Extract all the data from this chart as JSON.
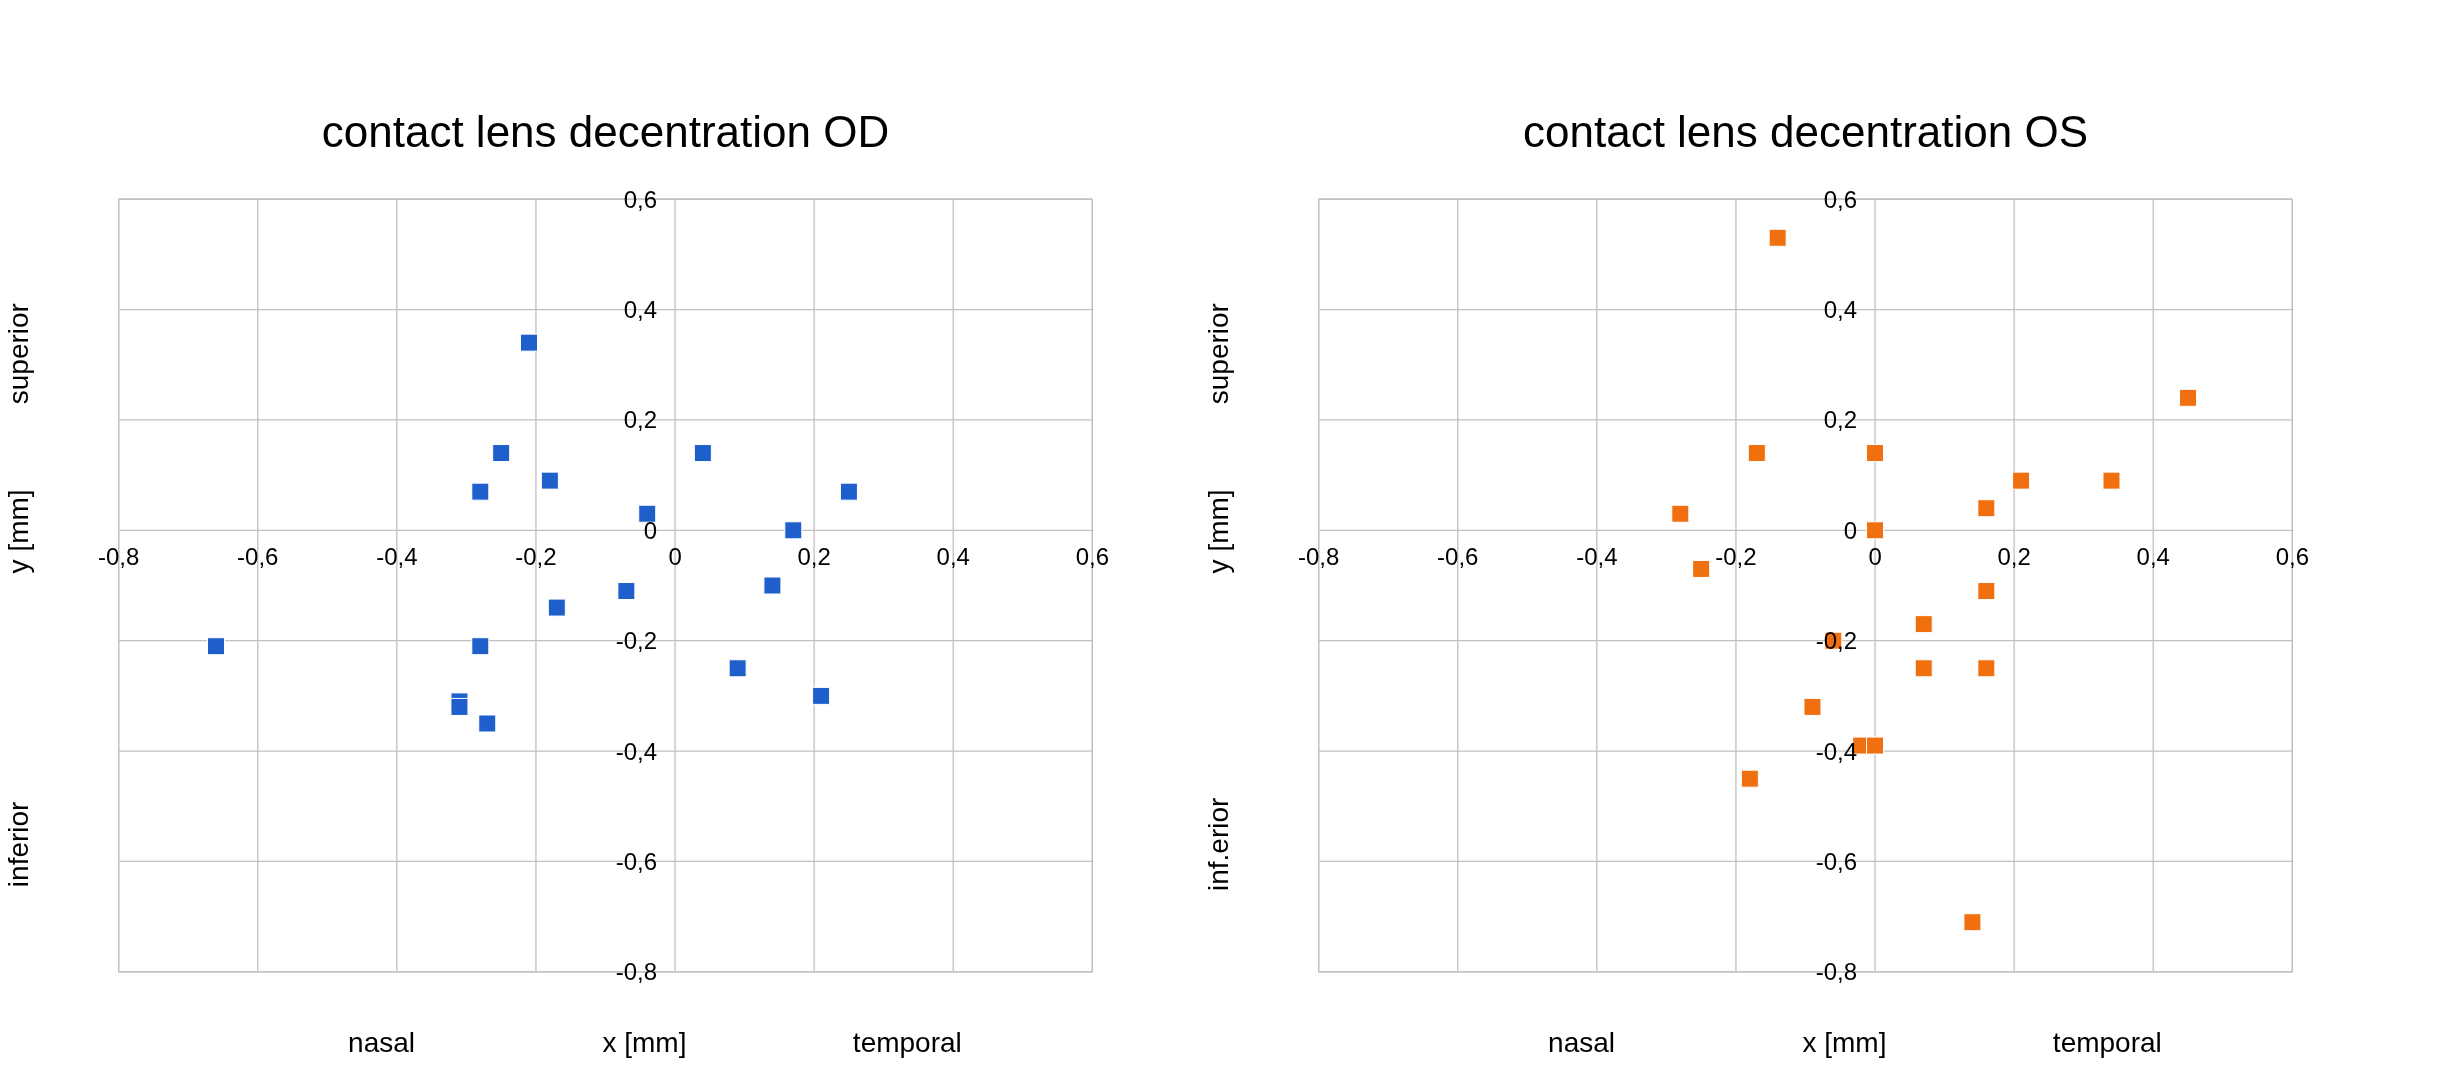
{
  "chart_data": [
    {
      "type": "scatter",
      "title": "contact lens decentration OD",
      "xlabel": "x [mm]",
      "ylabel": "y [mm]",
      "annotations": [
        "superior",
        "inferior",
        "nasal",
        "temporal"
      ],
      "marker": "square",
      "grid": true,
      "xlim": [
        -0.8,
        0.6
      ],
      "ylim": [
        -0.8,
        0.6
      ],
      "xticks": [
        {
          "value": -0.8,
          "label": "-0,8"
        },
        {
          "value": -0.6,
          "label": "-0,6"
        },
        {
          "value": -0.4,
          "label": "-0,4"
        },
        {
          "value": -0.2,
          "label": "-0,2"
        },
        0,
        {
          "value": 0.2,
          "label": "0,2"
        },
        {
          "value": 0.4,
          "label": "0,4"
        },
        {
          "value": 0.6,
          "label": "0,6"
        }
      ],
      "yticks": [
        {
          "value": -0.8,
          "label": "-0,8"
        },
        {
          "value": -0.6,
          "label": "-0,6"
        },
        {
          "value": -0.4,
          "label": "-0,4"
        },
        {
          "value": -0.2,
          "label": "-0,2"
        },
        0,
        {
          "value": 0.2,
          "label": "0,2"
        },
        {
          "value": 0.4,
          "label": "0,4"
        },
        {
          "value": 0.6,
          "label": "0,6"
        }
      ],
      "series": [
        {
          "color": "#1f5fcc",
          "x": [
            -0.21,
            -0.25,
            -0.18,
            -0.28,
            -0.04,
            0.04,
            0.25,
            0.17,
            0.14,
            -0.07,
            -0.17,
            -0.66,
            -0.28,
            -0.31,
            -0.31,
            -0.27,
            0.09,
            0.21
          ],
          "values": [
            0.34,
            0.14,
            0.09,
            0.07,
            0.03,
            0.14,
            0.07,
            0.0,
            -0.1,
            -0.11,
            -0.14,
            -0.21,
            -0.21,
            -0.31,
            -0.32,
            -0.35,
            -0.25,
            -0.3
          ]
        }
      ]
    },
    {
      "type": "scatter",
      "title": "contact lens decentration OS",
      "xlabel": "x [mm]",
      "ylabel": "y [mm]",
      "annotations": [
        "superior",
        "inf.erior",
        "nasal",
        "temporal"
      ],
      "marker": "square",
      "grid": true,
      "xlim": [
        -0.8,
        0.6
      ],
      "ylim": [
        -0.8,
        0.6
      ],
      "xticks": [
        {
          "value": -0.8,
          "label": "-0,8"
        },
        {
          "value": -0.6,
          "label": "-0,6"
        },
        {
          "value": -0.4,
          "label": "-0,4"
        },
        {
          "value": -0.2,
          "label": "-0,2"
        },
        0,
        {
          "value": 0.2,
          "label": "0,2"
        },
        {
          "value": 0.4,
          "label": "0,4"
        },
        {
          "value": 0.6,
          "label": "0,6"
        }
      ],
      "yticks": [
        {
          "value": -0.8,
          "label": "-0,8"
        },
        {
          "value": -0.6,
          "label": "-0,6"
        },
        {
          "value": -0.4,
          "label": "-0,4"
        },
        {
          "value": -0.2,
          "label": "-0,2"
        },
        0,
        {
          "value": 0.2,
          "label": "0,2"
        },
        {
          "value": 0.4,
          "label": "0,4"
        },
        {
          "value": 0.6,
          "label": "0,6"
        }
      ],
      "series": [
        {
          "color": "#f07010",
          "x": [
            -0.14,
            0.45,
            -0.17,
            0.0,
            0.21,
            0.34,
            0.16,
            -0.28,
            0.0,
            -0.25,
            0.16,
            0.07,
            -0.06,
            0.07,
            0.16,
            -0.09,
            -0.02,
            0.0,
            -0.18,
            0.14
          ],
          "values": [
            0.53,
            0.24,
            0.14,
            0.14,
            0.09,
            0.09,
            0.04,
            0.03,
            0.0,
            -0.07,
            -0.11,
            -0.17,
            -0.2,
            -0.25,
            -0.25,
            -0.32,
            -0.39,
            -0.39,
            -0.45,
            -0.71
          ]
        }
      ]
    }
  ]
}
